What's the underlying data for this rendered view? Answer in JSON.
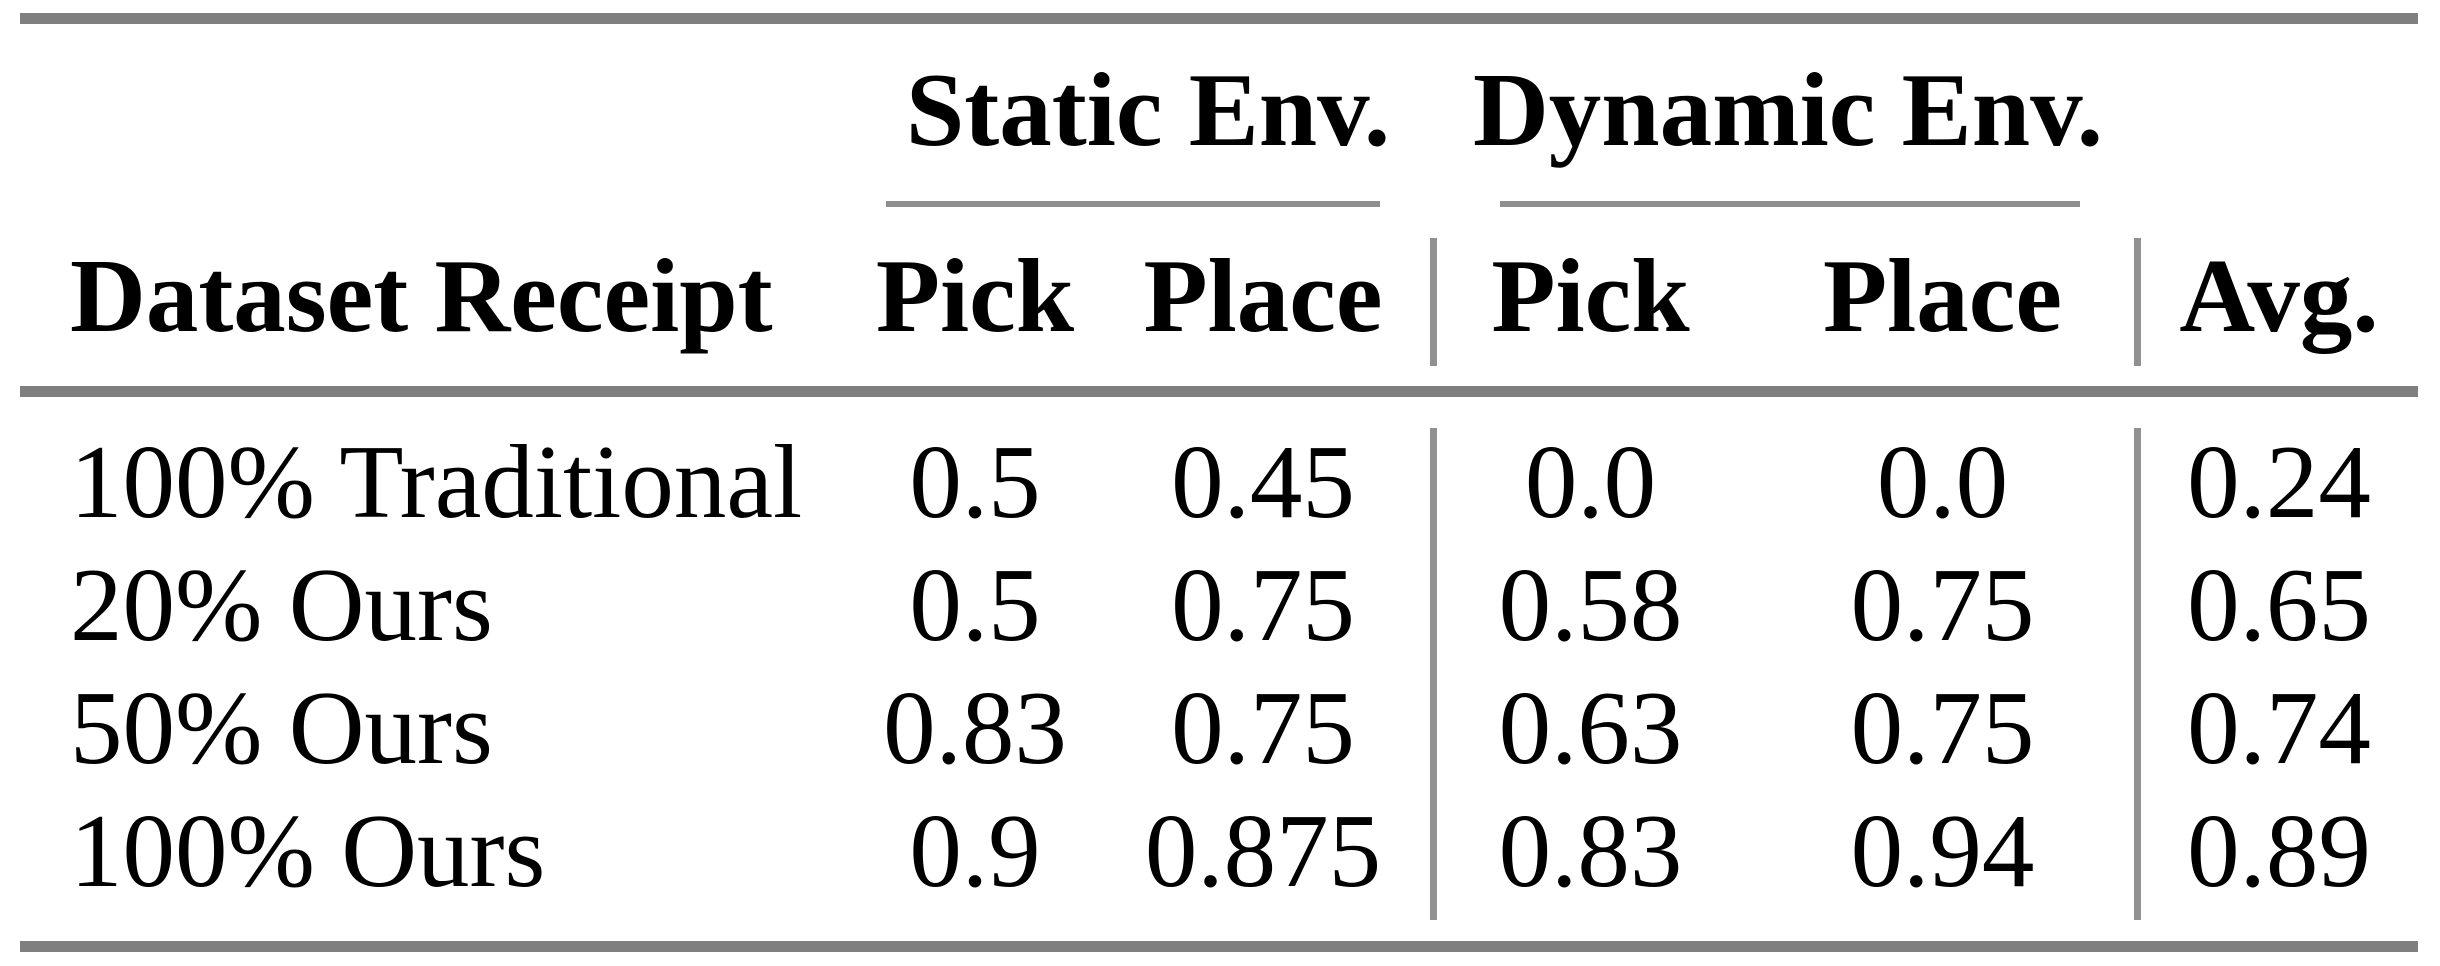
{
  "table": {
    "group_headers": [
      {
        "label": "Static Env."
      },
      {
        "label": "Dynamic Env."
      }
    ],
    "column_headers": {
      "dataset": "Dataset Receipt",
      "static_pick": "Pick",
      "static_place": "Place",
      "dynamic_pick": "Pick",
      "dynamic_place": "Place",
      "avg": "Avg."
    },
    "rows": [
      {
        "dataset": "100% Traditional",
        "static_pick": "0.5",
        "static_place": "0.45",
        "dynamic_pick": "0.0",
        "dynamic_place": "0.0",
        "avg": "0.24"
      },
      {
        "dataset": "20% Ours",
        "static_pick": "0.5",
        "static_place": "0.75",
        "dynamic_pick": "0.58",
        "dynamic_place": "0.75",
        "avg": "0.65"
      },
      {
        "dataset": "50% Ours",
        "static_pick": "0.83",
        "static_place": "0.75",
        "dynamic_pick": "0.63",
        "dynamic_place": "0.75",
        "avg": "0.74"
      },
      {
        "dataset": "100% Ours",
        "static_pick": "0.9",
        "static_place": "0.875",
        "dynamic_pick": "0.83",
        "dynamic_place": "0.94",
        "avg": "0.89"
      }
    ],
    "colors": {
      "thick_rule": "#7f7f7f",
      "thin_rule": "#8f8f8f",
      "text": "#000000",
      "background": "#ffffff"
    }
  },
  "chart_data": {
    "type": "table",
    "columns": [
      "Dataset Receipt",
      "Static Env. Pick",
      "Static Env. Place",
      "Dynamic Env. Pick",
      "Dynamic Env. Place",
      "Avg."
    ],
    "rows": [
      [
        "100% Traditional",
        0.5,
        0.45,
        0.0,
        0.0,
        0.24
      ],
      [
        "20% Ours",
        0.5,
        0.75,
        0.58,
        0.75,
        0.65
      ],
      [
        "50% Ours",
        0.83,
        0.75,
        0.63,
        0.75,
        0.74
      ],
      [
        "100% Ours",
        0.9,
        0.875,
        0.83,
        0.94,
        0.89
      ]
    ]
  }
}
